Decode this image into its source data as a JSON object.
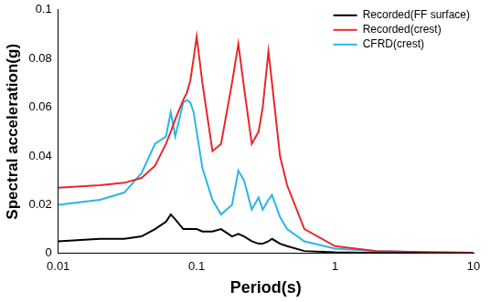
{
  "chart_data": {
    "type": "line",
    "x_label": "Period(s)",
    "y_label": "Spectral acceleration(g)",
    "log": "x",
    "grid": false,
    "legend": "top-right",
    "xlim": [
      0.01,
      10
    ],
    "xticks": [
      0.01,
      0.1,
      1,
      10
    ],
    "ylim": [
      0,
      0.1
    ],
    "yticks": [
      0,
      0.02,
      0.04,
      0.06,
      0.08,
      0.1
    ],
    "x": [
      0.01,
      0.02,
      0.03,
      0.04,
      0.05,
      0.06,
      0.065,
      0.07,
      0.08,
      0.085,
      0.09,
      0.095,
      0.1,
      0.11,
      0.13,
      0.15,
      0.18,
      0.2,
      0.22,
      0.25,
      0.28,
      0.3,
      0.33,
      0.35,
      0.4,
      0.45,
      0.6,
      1,
      2,
      5,
      10
    ],
    "series": [
      {
        "name": "Recorded(FF surface)",
        "color": "#000000",
        "values": [
          0.005,
          0.006,
          0.006,
          0.007,
          0.01,
          0.013,
          0.016,
          0.014,
          0.01,
          0.01,
          0.01,
          0.01,
          0.01,
          0.009,
          0.009,
          0.01,
          0.007,
          0.008,
          0.007,
          0.005,
          0.004,
          0.004,
          0.005,
          0.006,
          0.004,
          0.003,
          0.001,
          0.0005,
          0.0002,
          0.0001,
          0.0001
        ]
      },
      {
        "name": "Recorded(crest)",
        "color": "#e8282b",
        "values": [
          0.027,
          0.028,
          0.029,
          0.031,
          0.036,
          0.045,
          0.05,
          0.055,
          0.063,
          0.066,
          0.071,
          0.08,
          0.089,
          0.07,
          0.042,
          0.045,
          0.07,
          0.086,
          0.068,
          0.045,
          0.05,
          0.06,
          0.083,
          0.07,
          0.04,
          0.028,
          0.01,
          0.003,
          0.001,
          0.0005,
          0.0003
        ]
      },
      {
        "name": "CFRD(crest)",
        "color": "#29b6e8",
        "values": [
          0.02,
          0.022,
          0.025,
          0.033,
          0.045,
          0.048,
          0.058,
          0.048,
          0.062,
          0.063,
          0.062,
          0.058,
          0.05,
          0.035,
          0.022,
          0.016,
          0.02,
          0.034,
          0.03,
          0.018,
          0.023,
          0.018,
          0.022,
          0.024,
          0.015,
          0.01,
          0.005,
          0.002,
          0.001,
          0.0005,
          0.0003
        ]
      }
    ]
  }
}
